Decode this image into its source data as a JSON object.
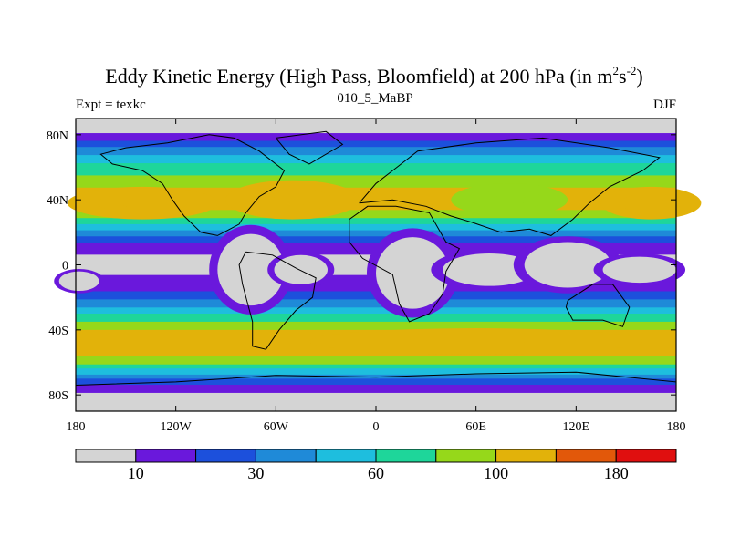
{
  "chart_data": {
    "type": "contour-map",
    "title_main": "Eddy Kinetic Energy (High Pass, Bloomfield) at 200 hPa (in m",
    "title_sup1": "2",
    "title_mid": "s",
    "title_sup2": "-2",
    "title_end": ")",
    "subtitle_center": "010_5_MaBP",
    "subtitle_left": "Expt = texkc",
    "subtitle_right": "DJF",
    "x_ticks": [
      {
        "value": -180,
        "label": "180"
      },
      {
        "value": -120,
        "label": "120W"
      },
      {
        "value": -60,
        "label": "60W"
      },
      {
        "value": 0,
        "label": "0"
      },
      {
        "value": 60,
        "label": "60E"
      },
      {
        "value": 120,
        "label": "120E"
      },
      {
        "value": 180,
        "label": "180"
      }
    ],
    "y_ticks": [
      {
        "value": 80,
        "label": "80N"
      },
      {
        "value": 40,
        "label": "40N"
      },
      {
        "value": 0,
        "label": "0"
      },
      {
        "value": -40,
        "label": "40S"
      },
      {
        "value": -80,
        "label": "80S"
      }
    ],
    "xlim": [
      -180,
      180
    ],
    "ylim": [
      -90,
      90
    ],
    "colorbar": {
      "colors": [
        "#d4d4d4",
        "#6a18dc",
        "#1c50dc",
        "#1f8ad8",
        "#1ebede",
        "#1ed69a",
        "#96d81a",
        "#e2b20a",
        "#e2580a",
        "#e00f0f"
      ],
      "levels": [
        10,
        30,
        60,
        100,
        180
      ],
      "labels": [
        "10",
        "30",
        "60",
        "100",
        "180"
      ],
      "label_after_box": [
        1,
        3,
        5,
        7,
        9
      ]
    },
    "lat_profile_eke": [
      {
        "lat": 88,
        "value": 5
      },
      {
        "lat": 84,
        "value": 5
      },
      {
        "lat": 80,
        "value": 12
      },
      {
        "lat": 75,
        "value": 22
      },
      {
        "lat": 70,
        "value": 38
      },
      {
        "lat": 65,
        "value": 55
      },
      {
        "lat": 60,
        "value": 68
      },
      {
        "lat": 55,
        "value": 80
      },
      {
        "lat": 50,
        "value": 92
      },
      {
        "lat": 45,
        "value": 105
      },
      {
        "lat": 40,
        "value": 115
      },
      {
        "lat": 35,
        "value": 105
      },
      {
        "lat": 30,
        "value": 85
      },
      {
        "lat": 25,
        "value": 60
      },
      {
        "lat": 20,
        "value": 38
      },
      {
        "lat": 15,
        "value": 22
      },
      {
        "lat": 10,
        "value": 12
      },
      {
        "lat": 5,
        "value": 9
      },
      {
        "lat": 0,
        "value": 8
      },
      {
        "lat": -5,
        "value": 9
      },
      {
        "lat": -10,
        "value": 12
      },
      {
        "lat": -15,
        "value": 18
      },
      {
        "lat": -20,
        "value": 28
      },
      {
        "lat": -25,
        "value": 42
      },
      {
        "lat": -30,
        "value": 60
      },
      {
        "lat": -35,
        "value": 82
      },
      {
        "lat": -40,
        "value": 102
      },
      {
        "lat": -45,
        "value": 118
      },
      {
        "lat": -50,
        "value": 122
      },
      {
        "lat": -55,
        "value": 108
      },
      {
        "lat": -60,
        "value": 85
      },
      {
        "lat": -65,
        "value": 55
      },
      {
        "lat": -70,
        "value": 32
      },
      {
        "lat": -75,
        "value": 15
      },
      {
        "lat": -80,
        "value": 8
      },
      {
        "lat": -84,
        "value": 5
      },
      {
        "lat": -88,
        "value": 5
      }
    ],
    "low_eke_regions": [
      {
        "name": "pacific-low-west",
        "lon": -178,
        "lat": -10,
        "lon_radius": 12,
        "lat_radius": 6
      },
      {
        "name": "south-america-low",
        "lon": -75,
        "lat": -3,
        "lon_radius": 20,
        "lat_radius": 22
      },
      {
        "name": "atlantic-low",
        "lon": -45,
        "lat": -3,
        "lon_radius": 16,
        "lat_radius": 9
      },
      {
        "name": "africa-low",
        "lon": 22,
        "lat": -5,
        "lon_radius": 22,
        "lat_radius": 22
      },
      {
        "name": "indian-low",
        "lon": 68,
        "lat": -3,
        "lon_radius": 28,
        "lat_radius": 10
      },
      {
        "name": "maritime-low",
        "lon": 115,
        "lat": 0,
        "lon_radius": 26,
        "lat_radius": 14
      },
      {
        "name": "west-pacific-low",
        "lon": 158,
        "lat": -3,
        "lon_radius": 22,
        "lat_radius": 8
      }
    ],
    "enhanced_regions": [
      {
        "name": "na-jet",
        "lon": -140,
        "lat": 38,
        "lon_radius": 45,
        "lat_radius": 10,
        "scale": 1.08
      },
      {
        "name": "atlantic-jet",
        "lon": -50,
        "lat": 40,
        "lon_radius": 40,
        "lat_radius": 12,
        "scale": 0.98
      },
      {
        "name": "pacific-jet",
        "lon": 165,
        "lat": 38,
        "lon_radius": 30,
        "lat_radius": 10,
        "scale": 1.1
      },
      {
        "name": "asia-weak",
        "lon": 80,
        "lat": 40,
        "lon_radius": 35,
        "lat_radius": 10,
        "scale": 0.7
      },
      {
        "name": "so-jet",
        "lon": 60,
        "lat": -47,
        "lon_radius": 100,
        "lat_radius": 8,
        "scale": 1.05
      }
    ]
  }
}
